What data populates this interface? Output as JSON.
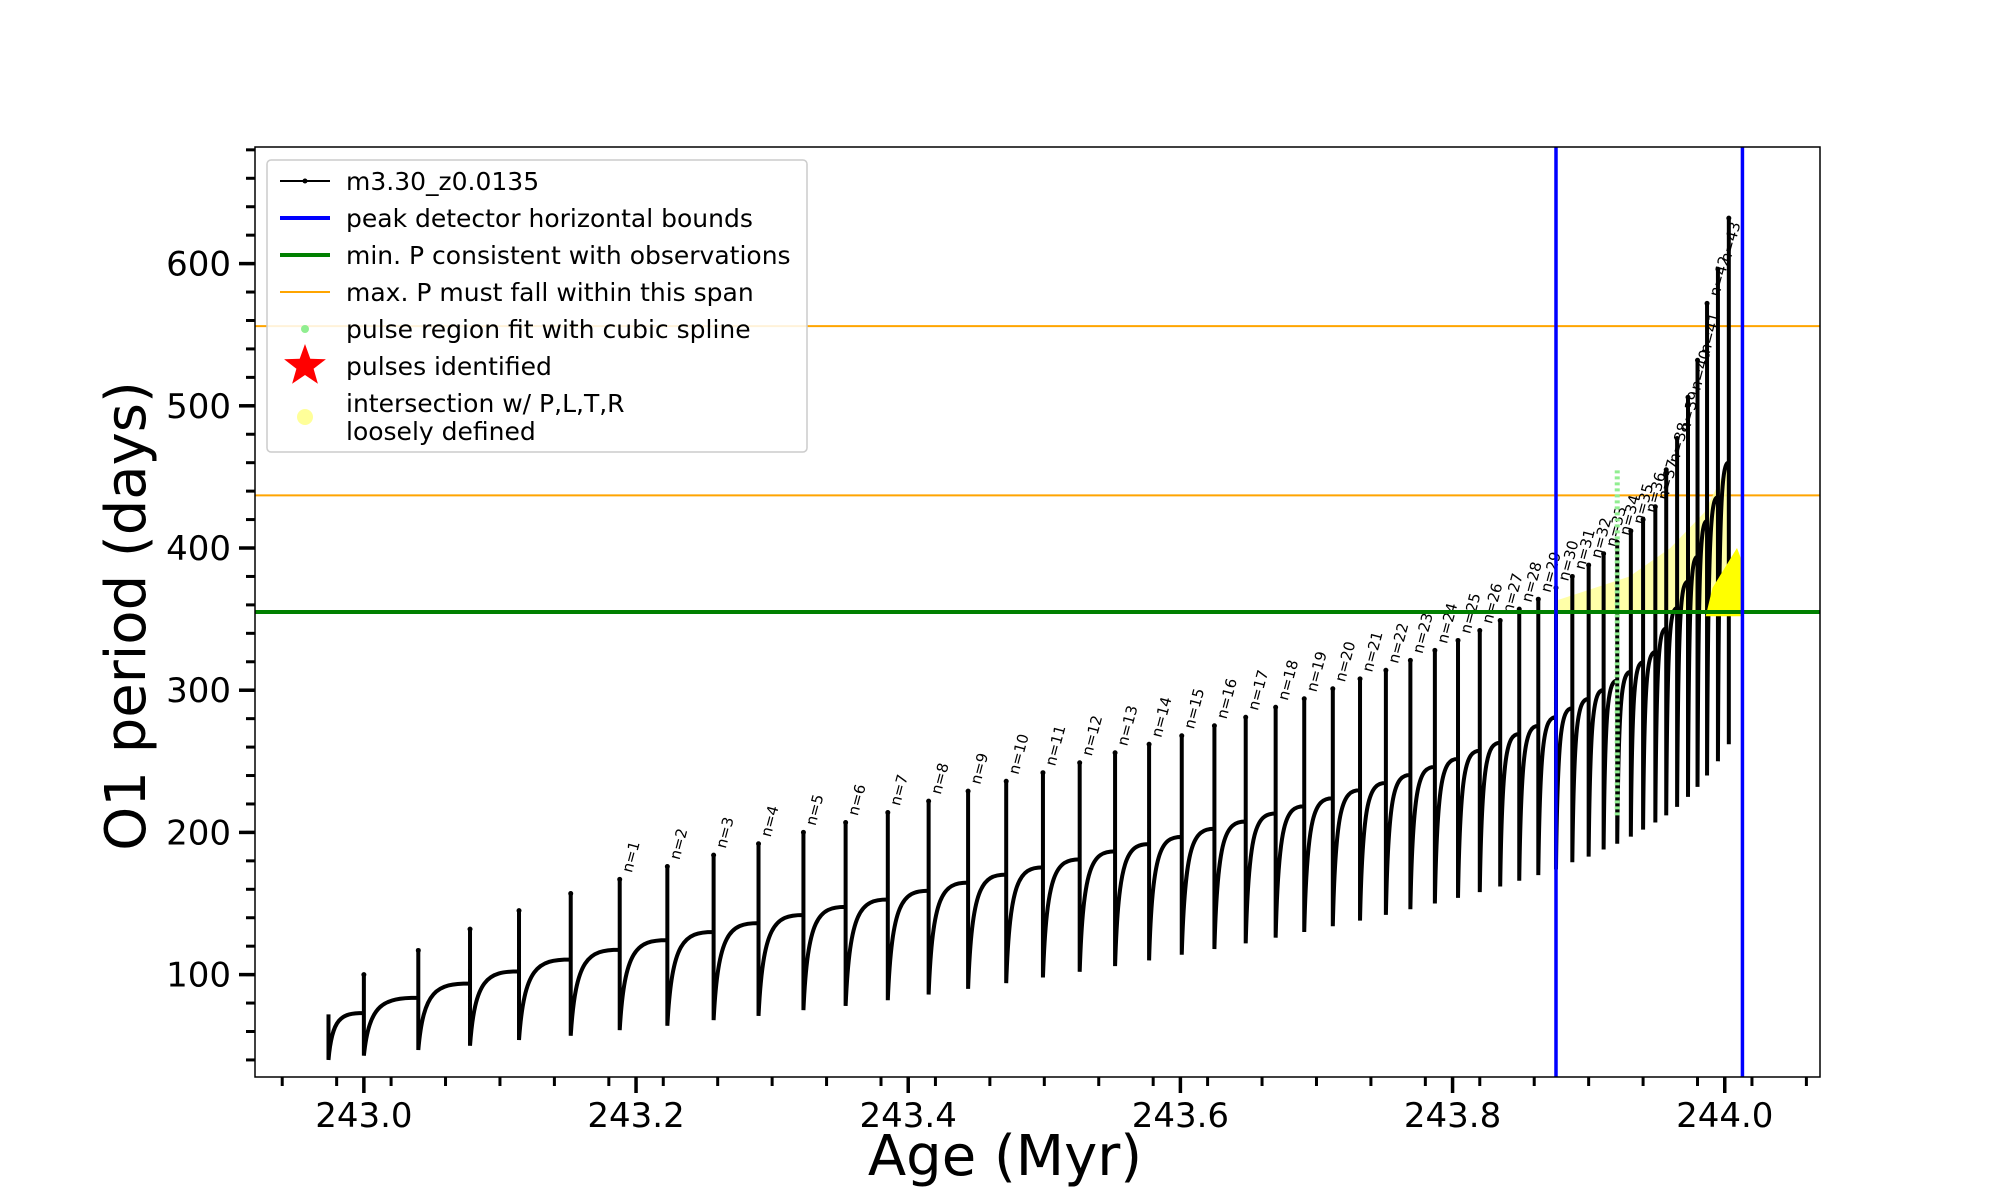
{
  "chart_data": {
    "type": "line",
    "xlabel": "Age (Myr)",
    "ylabel": "O1 period (days)",
    "xlim": [
      242.92,
      244.07
    ],
    "ylim": [
      28,
      682
    ],
    "x_ticks": [
      243.0,
      243.2,
      243.4,
      243.6,
      243.8,
      244.0
    ],
    "x_tick_labels": [
      "243.0",
      "243.2",
      "243.4",
      "243.6",
      "243.8",
      "244.0"
    ],
    "y_ticks": [
      100,
      200,
      300,
      400,
      500,
      600
    ],
    "y_tick_labels": [
      "100",
      "200",
      "300",
      "400",
      "500",
      "600"
    ],
    "legend_position": "top-left",
    "legend": [
      {
        "label": "m3.30_z0.0135",
        "style": "line-with-dot",
        "color": "#000000"
      },
      {
        "label": "peak detector horizontal bounds",
        "style": "line",
        "color": "#0000ff"
      },
      {
        "label": "min. P consistent with observations",
        "style": "line",
        "color": "#008000"
      },
      {
        "label": "max. P must fall within this span",
        "style": "thin-line",
        "color": "#ffa500"
      },
      {
        "label": "pulse region fit with cubic spline",
        "style": "dot",
        "color": "#90ee90"
      },
      {
        "label": "pulses identified",
        "style": "star",
        "color": "#ff0000"
      },
      {
        "label": "intersection w/ P,L,T,R",
        "label2": "loosely defined",
        "style": "dot",
        "color": "#ffff99"
      }
    ],
    "vertical_lines": [
      243.876,
      244.013
    ],
    "min_p_line": 355,
    "max_p_span": [
      437,
      556
    ],
    "series_name": "m3.30_z0.0135",
    "pulse_first_age": 243.0,
    "pulses": [
      {
        "age": 243.0,
        "min": 43,
        "peak": 100,
        "label": ""
      },
      {
        "age": 243.04,
        "min": 47,
        "peak": 117,
        "label": ""
      },
      {
        "age": 243.078,
        "min": 50,
        "peak": 132,
        "label": ""
      },
      {
        "age": 243.114,
        "min": 54,
        "peak": 145,
        "label": ""
      },
      {
        "age": 243.152,
        "min": 57,
        "peak": 157,
        "label": ""
      },
      {
        "age": 243.188,
        "min": 61,
        "peak": 167,
        "label": "n=1"
      },
      {
        "age": 243.223,
        "min": 64,
        "peak": 176,
        "label": "n=2"
      },
      {
        "age": 243.257,
        "min": 68,
        "peak": 184,
        "label": "n=3"
      },
      {
        "age": 243.29,
        "min": 71,
        "peak": 192,
        "label": "n=4"
      },
      {
        "age": 243.323,
        "min": 75,
        "peak": 200,
        "label": "n=5"
      },
      {
        "age": 243.354,
        "min": 78,
        "peak": 207,
        "label": "n=6"
      },
      {
        "age": 243.385,
        "min": 82,
        "peak": 214,
        "label": "n=7"
      },
      {
        "age": 243.415,
        "min": 86,
        "peak": 222,
        "label": "n=8"
      },
      {
        "age": 243.444,
        "min": 90,
        "peak": 229,
        "label": "n=9"
      },
      {
        "age": 243.472,
        "min": 94,
        "peak": 236,
        "label": "n=10"
      },
      {
        "age": 243.499,
        "min": 98,
        "peak": 242,
        "label": "n=11"
      },
      {
        "age": 243.526,
        "min": 102,
        "peak": 249,
        "label": "n=12"
      },
      {
        "age": 243.552,
        "min": 106,
        "peak": 256,
        "label": "n=13"
      },
      {
        "age": 243.577,
        "min": 110,
        "peak": 262,
        "label": "n=14"
      },
      {
        "age": 243.601,
        "min": 114,
        "peak": 268,
        "label": "n=15"
      },
      {
        "age": 243.625,
        "min": 118,
        "peak": 275,
        "label": "n=16"
      },
      {
        "age": 243.648,
        "min": 122,
        "peak": 281,
        "label": "n=17"
      },
      {
        "age": 243.67,
        "min": 126,
        "peak": 288,
        "label": "n=18"
      },
      {
        "age": 243.691,
        "min": 130,
        "peak": 294,
        "label": "n=19"
      },
      {
        "age": 243.712,
        "min": 134,
        "peak": 301,
        "label": "n=20"
      },
      {
        "age": 243.732,
        "min": 138,
        "peak": 308,
        "label": "n=21"
      },
      {
        "age": 243.751,
        "min": 142,
        "peak": 314,
        "label": "n=22"
      },
      {
        "age": 243.769,
        "min": 146,
        "peak": 321,
        "label": "n=23"
      },
      {
        "age": 243.787,
        "min": 150,
        "peak": 328,
        "label": "n=24"
      },
      {
        "age": 243.804,
        "min": 154,
        "peak": 335,
        "label": "n=25"
      },
      {
        "age": 243.82,
        "min": 158,
        "peak": 342,
        "label": "n=26"
      },
      {
        "age": 243.835,
        "min": 162,
        "peak": 349,
        "label": "n=27"
      },
      {
        "age": 243.849,
        "min": 166,
        "peak": 357,
        "label": "n=28"
      },
      {
        "age": 243.863,
        "min": 170,
        "peak": 364,
        "label": "n=29"
      },
      {
        "age": 243.876,
        "min": 174,
        "peak": 372,
        "label": "n=30"
      },
      {
        "age": 243.888,
        "min": 179,
        "peak": 380,
        "label": "n=31"
      },
      {
        "age": 243.9,
        "min": 183,
        "peak": 388,
        "label": "n=32"
      },
      {
        "age": 243.911,
        "min": 188,
        "peak": 396,
        "label": "n=33"
      },
      {
        "age": 243.921,
        "min": 192,
        "peak": 404,
        "label": "n=34"
      },
      {
        "age": 243.931,
        "min": 197,
        "peak": 412,
        "label": "n=35"
      },
      {
        "age": 243.94,
        "min": 202,
        "peak": 420,
        "label": "n=36"
      },
      {
        "age": 243.949,
        "min": 207,
        "peak": 429,
        "label": "n=37"
      },
      {
        "age": 243.957,
        "min": 212,
        "peak": 455,
        "label": "n=38"
      },
      {
        "age": 243.965,
        "min": 218,
        "peak": 477,
        "label": "n=39"
      },
      {
        "age": 243.973,
        "min": 225,
        "peak": 506,
        "label": "n=40"
      },
      {
        "age": 243.98,
        "min": 232,
        "peak": 532,
        "label": "n=41"
      },
      {
        "age": 243.987,
        "min": 240,
        "peak": 572,
        "label": "n=42"
      },
      {
        "age": 243.995,
        "min": 250,
        "peak": 596,
        "label": "n=43"
      },
      {
        "age": 244.003,
        "min": 262,
        "peak": 632,
        "label": ""
      }
    ],
    "spline_region": {
      "age": 243.921,
      "min": 212,
      "max": 455
    },
    "intersection_region": {
      "age_start": 243.876,
      "age_end": 244.003,
      "min": 355,
      "max": 460
    },
    "intersection_blob": {
      "age_start": 243.986,
      "age_end": 244.013,
      "min": 352,
      "max": 400
    }
  }
}
